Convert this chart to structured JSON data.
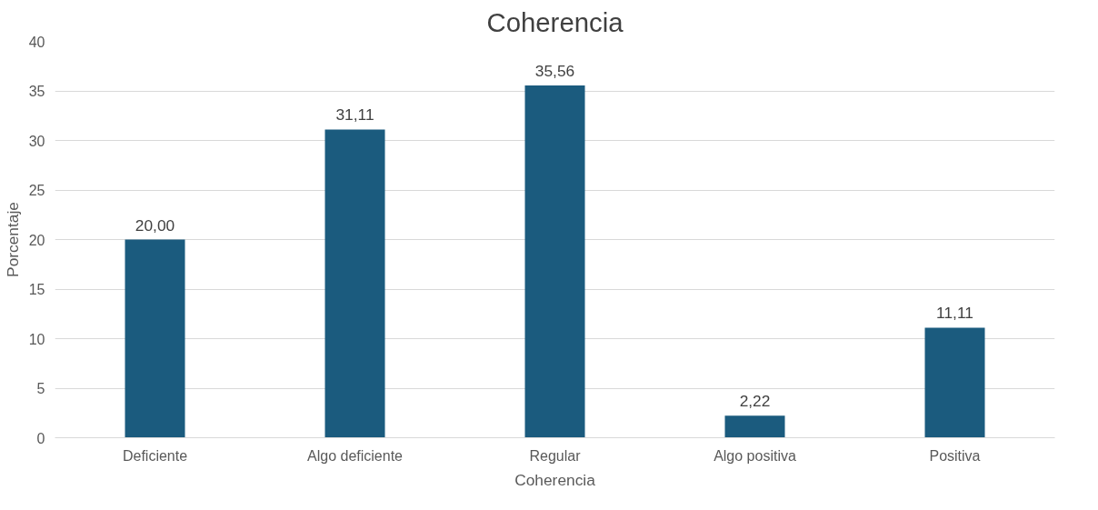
{
  "chart_data": {
    "type": "bar",
    "title": "Coherencia",
    "xlabel": "Coherencia",
    "ylabel": "Porcentaje",
    "categories": [
      "Deficiente",
      "Algo deficiente",
      "Regular",
      "Algo positiva",
      "Positiva"
    ],
    "values": [
      20.0,
      31.11,
      35.56,
      2.22,
      11.11
    ],
    "value_labels": [
      "20,00",
      "31,11",
      "35,56",
      "2,22",
      "11,11"
    ],
    "color": "#1b5b7e",
    "ylim": [
      0,
      40
    ],
    "yticks": [
      0,
      5,
      10,
      15,
      20,
      25,
      30,
      35,
      40
    ],
    "grid": "y"
  }
}
